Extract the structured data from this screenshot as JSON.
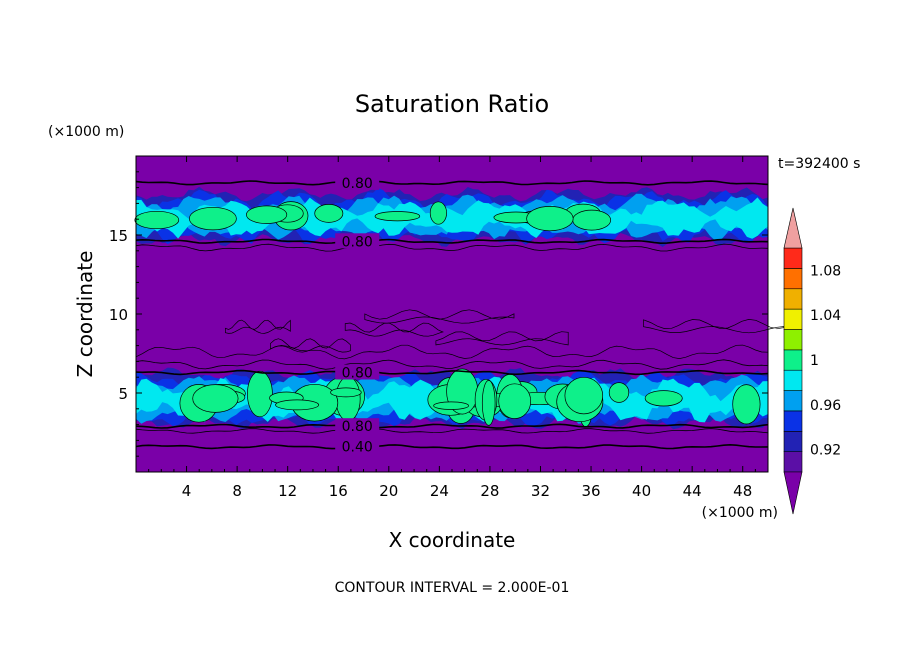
{
  "chart_data": {
    "type": "heatmap",
    "title": "Saturation Ratio",
    "xlabel": "X coordinate",
    "ylabel": "Z coordinate",
    "x_unit": "(×1000 m)",
    "y_unit": "(×1000 m)",
    "time_label": "t=392400 s",
    "footer": "CONTOUR INTERVAL = 2.000E-01",
    "xlim": [
      0,
      50
    ],
    "ylim": [
      0,
      20
    ],
    "x_ticks": [
      4,
      8,
      12,
      16,
      20,
      24,
      28,
      32,
      36,
      40,
      44,
      48
    ],
    "y_ticks": [
      5,
      10,
      15
    ],
    "layers": [
      {
        "name": "upper cloud layer",
        "z_min": 14.6,
        "z_max": 17.6,
        "peak_value": 1.0
      },
      {
        "name": "lower cloud layer",
        "z_min": 3.0,
        "z_max": 6.2,
        "peak_value": 1.0
      }
    ],
    "contour_labels": [
      {
        "text": "0.80",
        "x": 17.5,
        "z": 18.3
      },
      {
        "text": "0.80",
        "x": 17.5,
        "z": 14.6
      },
      {
        "text": "0.80",
        "x": 17.5,
        "z": 6.3
      },
      {
        "text": "0.80",
        "x": 17.5,
        "z": 2.9
      },
      {
        "text": "0.40",
        "x": 17.5,
        "z": 1.6
      }
    ],
    "colorbar": {
      "ticks": [
        "1.08",
        "1.04",
        "1",
        "0.96",
        "0.92"
      ],
      "levels": [
        0.9,
        0.92,
        0.94,
        0.96,
        0.98,
        1.0,
        1.02,
        1.04,
        1.06,
        1.08,
        1.1
      ],
      "colors": [
        "#5b0fa6",
        "#2222b4",
        "#0a32e6",
        "#00a0f0",
        "#00e8f0",
        "#0ef08a",
        "#8ef000",
        "#f0f000",
        "#f0b000",
        "#ff7000",
        "#ff2a1a"
      ],
      "over_color": "#f0a0a0",
      "under_color": "#7a00a8"
    },
    "colors": {
      "background": "#7a00a8",
      "contour_line": "#000000"
    }
  }
}
